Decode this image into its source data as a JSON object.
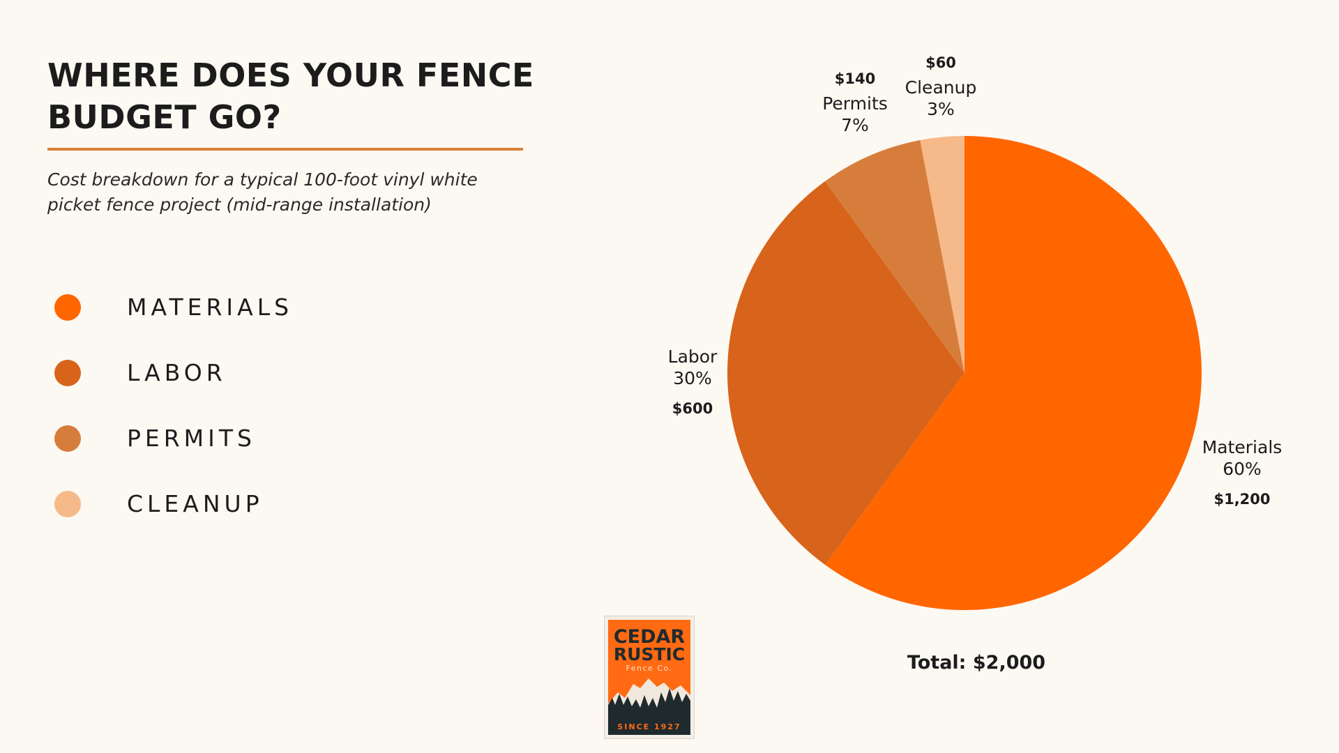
{
  "header": {
    "title": "WHERE DOES YOUR FENCE BUDGET GO?",
    "subtitle": "Cost breakdown for a typical 100-foot vinyl white picket fence project (mid-range installation)"
  },
  "legend": {
    "items": [
      {
        "label": "MATERIALS",
        "color": "#ff6600"
      },
      {
        "label": "LABOR",
        "color": "#d8631a"
      },
      {
        "label": "PERMITS",
        "color": "#d77d3c"
      },
      {
        "label": "CLEANUP",
        "color": "#f6b98a"
      }
    ]
  },
  "chart_data": {
    "type": "pie",
    "categories": [
      "Materials",
      "Labor",
      "Permits",
      "Cleanup"
    ],
    "values": [
      60,
      30,
      7,
      3
    ],
    "percent_labels": [
      "60%",
      "30%",
      "7%",
      "3%"
    ],
    "amount_labels": [
      "$1,200",
      "$600",
      "$140",
      "$60"
    ],
    "amounts": [
      1200,
      600,
      140,
      60
    ],
    "colors": [
      "#ff6600",
      "#d8631a",
      "#d77d3c",
      "#f6b98a"
    ],
    "start_angle": "top",
    "direction": "clockwise",
    "total_label": "Total: $2,000"
  },
  "logo": {
    "name_line1": "CEDAR",
    "name_line2": "RUSTIC",
    "tagline": "Fence Co.",
    "since": "SINCE 1927"
  }
}
